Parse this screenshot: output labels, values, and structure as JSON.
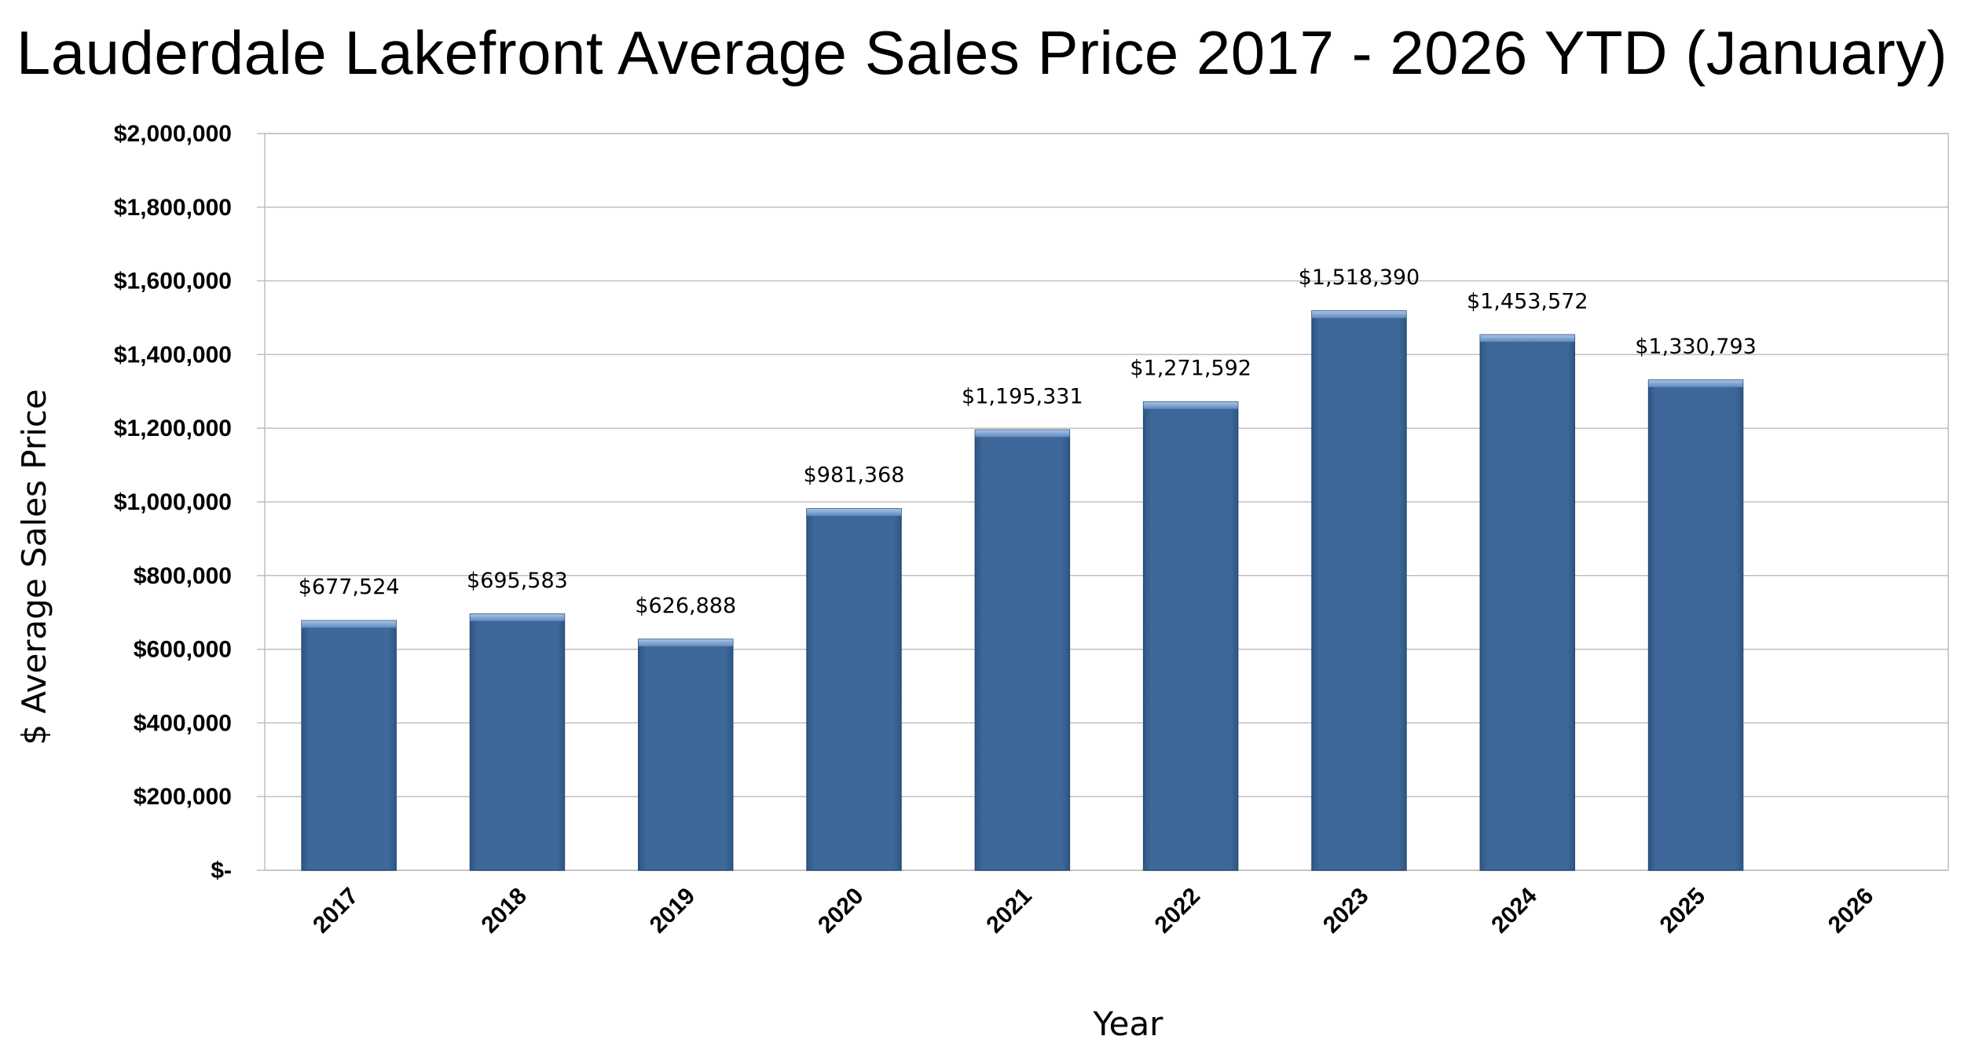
{
  "chart_data": {
    "type": "bar",
    "title": "Lauderdale Lakefront Average Sales Price 2017 - 2026 YTD (January)",
    "xlabel": "Year",
    "ylabel": "$ Average Sales Price",
    "categories": [
      "2017",
      "2018",
      "2019",
      "2020",
      "2021",
      "2022",
      "2023",
      "2024",
      "2025",
      "2026"
    ],
    "values": [
      677524,
      695583,
      626888,
      981368,
      1195331,
      1271592,
      1518390,
      1453572,
      1330793,
      null
    ],
    "data_labels": [
      "$677,524",
      "$695,583",
      "$626,888",
      "$981,368",
      "$1,195,331",
      "$1,271,592",
      "$1,518,390",
      "$1,453,572",
      "$1,330,793",
      ""
    ],
    "ylim": [
      0,
      2000000
    ],
    "yticks": [
      0,
      200000,
      400000,
      600000,
      800000,
      1000000,
      1200000,
      1400000,
      1600000,
      1800000,
      2000000
    ],
    "ytick_labels": [
      "$-",
      "$200,000",
      "$400,000",
      "$600,000",
      "$800,000",
      "$1,000,000",
      "$1,200,000",
      "$1,400,000",
      "$1,600,000",
      "$1,800,000",
      "$2,000,000"
    ],
    "grid": true,
    "legend": "none",
    "bar_color": "#3d6899"
  }
}
